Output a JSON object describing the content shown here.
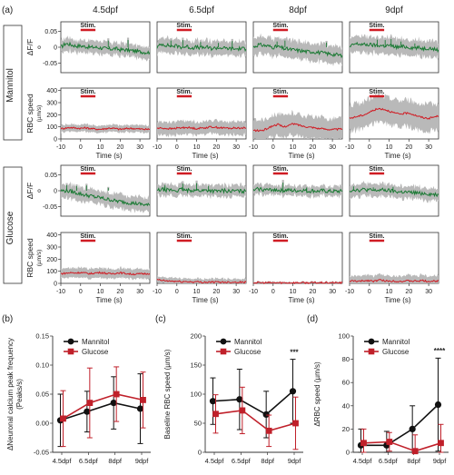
{
  "panel_labels": {
    "a": "(a)",
    "b": "(b)",
    "c": "(c)",
    "d": "(d)"
  },
  "colors": {
    "mannitol": "#111111",
    "glucose": "#c0202a",
    "trace_green": "#1b7a34",
    "trace_red": "#d01c24",
    "sd_gray": "#b9b9b9"
  },
  "chart_data": [
    {
      "type": "line",
      "panel": "a",
      "title": "",
      "columns": [
        "4.5dpf",
        "6.5dpf",
        "8dpf",
        "9dpf"
      ],
      "groups": [
        "Mannitol",
        "Glucose"
      ],
      "rows": [
        {
          "group": "Mannitol",
          "ylabel_lines": [
            "ΔF/F",
            "o"
          ],
          "yticks": [
            0.05,
            0,
            -0.05
          ],
          "yticklabels": [
            "0.05",
            "0",
            "-0.05"
          ],
          "ylim": [
            -0.08,
            0.08
          ],
          "stim_label": "Stim.",
          "stim_range": [
            0,
            5
          ],
          "show_xticks": false,
          "color": "#1b7a34",
          "mean": [
            [
              0.0,
              0.012,
              0.008,
              0.004,
              0.004,
              0.002,
              0.0,
              0.0,
              -0.002,
              -0.004,
              -0.006,
              -0.004,
              -0.008,
              -0.008,
              -0.01,
              -0.012,
              -0.014,
              -0.016,
              -0.016
            ],
            [
              0.0,
              0.01,
              0.006,
              0.004,
              0.004,
              0.0,
              0.002,
              -0.002,
              0.0,
              -0.002,
              0.0,
              -0.004,
              -0.002,
              -0.002,
              -0.004,
              -0.004,
              -0.006,
              -0.004,
              -0.006
            ],
            [
              0.0,
              0.008,
              0.006,
              0.004,
              0.0,
              0.002,
              -0.004,
              -0.006,
              -0.008,
              -0.01,
              -0.012,
              -0.014,
              -0.014,
              -0.016,
              -0.018,
              -0.02,
              -0.022,
              -0.024,
              -0.026
            ],
            [
              0.0,
              0.01,
              0.01,
              0.008,
              0.008,
              0.006,
              0.006,
              0.004,
              0.006,
              0.002,
              0.0,
              0.002,
              0.0,
              -0.002,
              -0.002,
              -0.004,
              -0.002,
              -0.006,
              -0.008
            ]
          ],
          "sd": [
            0.02,
            0.022,
            0.028,
            0.026
          ],
          "spikes": [
            [
              [
                14,
                0.028
              ],
              [
                24,
                0.03
              ]
            ],
            [
              [
                -3,
                0.028
              ],
              [
                3,
                0.03
              ],
              [
                12,
                0.022
              ],
              [
                21,
                0.018
              ],
              [
                28,
                0.026
              ]
            ],
            [
              [
                2,
                0.024
              ],
              [
                6,
                0.028
              ],
              [
                27,
                0.02
              ]
            ],
            [
              [
                4,
                0.032
              ],
              [
                8,
                0.03
              ],
              [
                11,
                0.034
              ],
              [
                16,
                0.024
              ],
              [
                23,
                0.016
              ]
            ]
          ]
        },
        {
          "group": "Mannitol",
          "ylabel_lines": [
            "RBC speed",
            "(µm/s)"
          ],
          "yticks": [
            0,
            100,
            200,
            300,
            400
          ],
          "yticklabels": [
            "0",
            "100",
            "200",
            "300",
            "400"
          ],
          "ylim": [
            0,
            420
          ],
          "stim_label": "Stim.",
          "stim_range": [
            0,
            5
          ],
          "show_xticks": true,
          "color": "#d01c24",
          "mean": [
            [
              85,
              90,
              95,
              90,
              88,
              92,
              86,
              82,
              80,
              85,
              90,
              86,
              80,
              84,
              88,
              86,
              82,
              80,
              80
            ],
            [
              88,
              90,
              86,
              84,
              90,
              92,
              96,
              90,
              86,
              90,
              94,
              100,
              96,
              92,
              90,
              88,
              92,
              90,
              90
            ],
            [
              70,
              68,
              72,
              90,
              110,
              120,
              100,
              110,
              125,
              118,
              106,
              100,
              96,
              88,
              84,
              80,
              78,
              80,
              82
            ],
            [
              170,
              180,
              190,
              200,
              220,
              240,
              250,
              245,
              230,
              215,
              205,
              210,
              215,
              200,
              185,
              175,
              170,
              180,
              190
            ]
          ],
          "sd": [
            30,
            55,
            90,
            110
          ],
          "spikes": [
            [],
            [],
            [],
            []
          ]
        },
        {
          "group": "Glucose",
          "ylabel_lines": [
            "ΔF/F",
            "o"
          ],
          "yticks": [
            0.05,
            0,
            -0.05
          ],
          "yticklabels": [
            "0.05",
            "0",
            "-0.05"
          ],
          "ylim": [
            -0.08,
            0.08
          ],
          "stim_label": "Stim.",
          "stim_range": [
            0,
            5
          ],
          "show_xticks": false,
          "color": "#1b7a34",
          "mean": [
            [
              0.0,
              0.0,
              -0.002,
              -0.006,
              -0.01,
              -0.014,
              -0.016,
              -0.02,
              -0.022,
              -0.026,
              -0.028,
              -0.032,
              -0.034,
              -0.036,
              -0.038,
              -0.04,
              -0.042,
              -0.044,
              -0.046
            ],
            [
              0.0,
              0.004,
              0.002,
              0.002,
              0.0,
              0.004,
              0.0,
              0.002,
              0.002,
              0.0,
              0.002,
              0.0,
              -0.002,
              0.0,
              0.0,
              -0.002,
              0.0,
              -0.002,
              -0.002
            ],
            [
              0.0,
              0.006,
              0.004,
              0.002,
              0.004,
              0.002,
              0.0,
              0.002,
              0.0,
              0.0,
              0.002,
              -0.002,
              0.0,
              -0.002,
              0.0,
              -0.002,
              -0.002,
              -0.002,
              -0.002
            ],
            [
              0.0,
              0.004,
              0.002,
              0.004,
              0.002,
              0.0,
              0.002,
              0.002,
              0.0,
              -0.002,
              -0.004,
              -0.004,
              -0.006,
              -0.006,
              -0.008,
              -0.008,
              -0.01,
              -0.012,
              -0.012
            ]
          ],
          "sd": [
            0.022,
            0.018,
            0.016,
            0.02
          ],
          "spikes": [
            [
              [
                -7,
                0.024
              ],
              [
                -2,
                0.02
              ],
              [
                3,
                0.022
              ],
              [
                14,
                0.012
              ]
            ],
            [
              [
                -6,
                0.024
              ],
              [
                3,
                0.03
              ],
              [
                10,
                0.032
              ],
              [
                16,
                0.02
              ]
            ],
            [
              [
                5,
                0.034
              ],
              [
                17,
                0.014
              ]
            ],
            [
              [
                -8,
                0.018
              ],
              [
                2,
                0.014
              ],
              [
                12,
                0.016
              ]
            ]
          ]
        },
        {
          "group": "Glucose",
          "ylabel_lines": [
            "RBC speed",
            "(µm/s)"
          ],
          "yticks": [
            0,
            100,
            200,
            300,
            400
          ],
          "yticklabels": [
            "0",
            "100",
            "200",
            "300",
            "400"
          ],
          "ylim": [
            0,
            420
          ],
          "stim_label": "Stim.",
          "stim_range": [
            0,
            5
          ],
          "show_xticks": true,
          "color": "#d01c24",
          "mean": [
            [
              80,
              84,
              88,
              86,
              90,
              84,
              80,
              86,
              90,
              84,
              78,
              84,
              88,
              82,
              78,
              76,
              78,
              80,
              82
            ],
            [
              30,
              24,
              20,
              18,
              16,
              14,
              14,
              12,
              12,
              10,
              10,
              10,
              10,
              10,
              10,
              10,
              10,
              10,
              10
            ],
            [
              6,
              6,
              5,
              5,
              5,
              5,
              5,
              5,
              5,
              5,
              5,
              5,
              5,
              5,
              5,
              5,
              5,
              5,
              5
            ],
            [
              18,
              20,
              16,
              22,
              24,
              18,
              28,
              22,
              18,
              20,
              16,
              18,
              20,
              18,
              20,
              22,
              16,
              18,
              20
            ]
          ],
          "sd": [
            40,
            28,
            8,
            45
          ],
          "spikes": [
            [],
            [],
            [],
            []
          ]
        }
      ],
      "x_range": [
        -10,
        35
      ],
      "xticks": [
        -10,
        0,
        10,
        20,
        30
      ],
      "xticklabels": [
        "-10",
        "0",
        "10",
        "20",
        "30"
      ],
      "xlabel": "Time (s)"
    },
    {
      "type": "line",
      "panel": "b",
      "ylabel_lines": [
        "ΔNeuronal calcium peak frequency",
        "(Peaks/s)"
      ],
      "categories": [
        "4.5dpf",
        "6.5dpf",
        "8dpf",
        "9dpf"
      ],
      "ylim": [
        -0.05,
        0.15
      ],
      "yticks": [
        -0.05,
        0.0,
        0.05,
        0.1,
        0.15
      ],
      "yticklabels": [
        "-0.05",
        "0.00",
        "0.05",
        "0.10",
        "0.15"
      ],
      "legend": "top-left",
      "series": [
        {
          "name": "Mannitol",
          "color": "#111111",
          "marker": "circle",
          "values": [
            0.005,
            0.02,
            0.035,
            0.025
          ],
          "err": [
            0.045,
            0.035,
            0.045,
            0.06
          ]
        },
        {
          "name": "Glucose",
          "color": "#c0202a",
          "marker": "square",
          "values": [
            0.008,
            0.035,
            0.05,
            0.04
          ],
          "err": [
            0.048,
            0.06,
            0.047,
            0.048
          ]
        }
      ],
      "annotations": []
    },
    {
      "type": "line",
      "panel": "c",
      "ylabel_lines": [
        "Baseline  RBC speed (µm/s)"
      ],
      "categories": [
        "4.5dpf",
        "6.5dpf",
        "8dpf",
        "9dpf"
      ],
      "ylim": [
        0,
        200
      ],
      "yticks": [
        0,
        50,
        100,
        150,
        200
      ],
      "yticklabels": [
        "0",
        "50",
        "100",
        "150",
        "200"
      ],
      "legend": "top-left",
      "series": [
        {
          "name": "Mannitol",
          "color": "#111111",
          "marker": "circle",
          "values": [
            88,
            91,
            65,
            105
          ],
          "err": [
            40,
            52,
            40,
            55
          ]
        },
        {
          "name": "Glucose",
          "color": "#c0202a",
          "marker": "square",
          "values": [
            66,
            72,
            37,
            50
          ],
          "err": [
            33,
            40,
            27,
            45
          ]
        }
      ],
      "annotations": [
        {
          "text": "***",
          "category": "9dpf",
          "value": 168
        }
      ]
    },
    {
      "type": "line",
      "panel": "d",
      "ylabel_lines": [
        "ΔRBC speed (µm/s)"
      ],
      "categories": [
        "4.5dpf",
        "6.5dpf",
        "8dpf",
        "9dpf"
      ],
      "ylim": [
        0,
        100
      ],
      "yticks": [
        0,
        20,
        40,
        60,
        80,
        100
      ],
      "yticklabels": [
        "0",
        "20",
        "40",
        "60",
        "80",
        "100"
      ],
      "legend": "top-left",
      "series": [
        {
          "name": "Mannitol",
          "color": "#111111",
          "marker": "circle",
          "values": [
            6,
            6,
            20,
            41
          ],
          "err": [
            14,
            12,
            20,
            40
          ]
        },
        {
          "name": "Glucose",
          "color": "#c0202a",
          "marker": "square",
          "values": [
            8,
            9,
            1,
            8
          ],
          "err": [
            12,
            8,
            14,
            16
          ]
        }
      ],
      "annotations": [
        {
          "text": "****",
          "category": "9dpf",
          "value": 85
        }
      ]
    }
  ]
}
